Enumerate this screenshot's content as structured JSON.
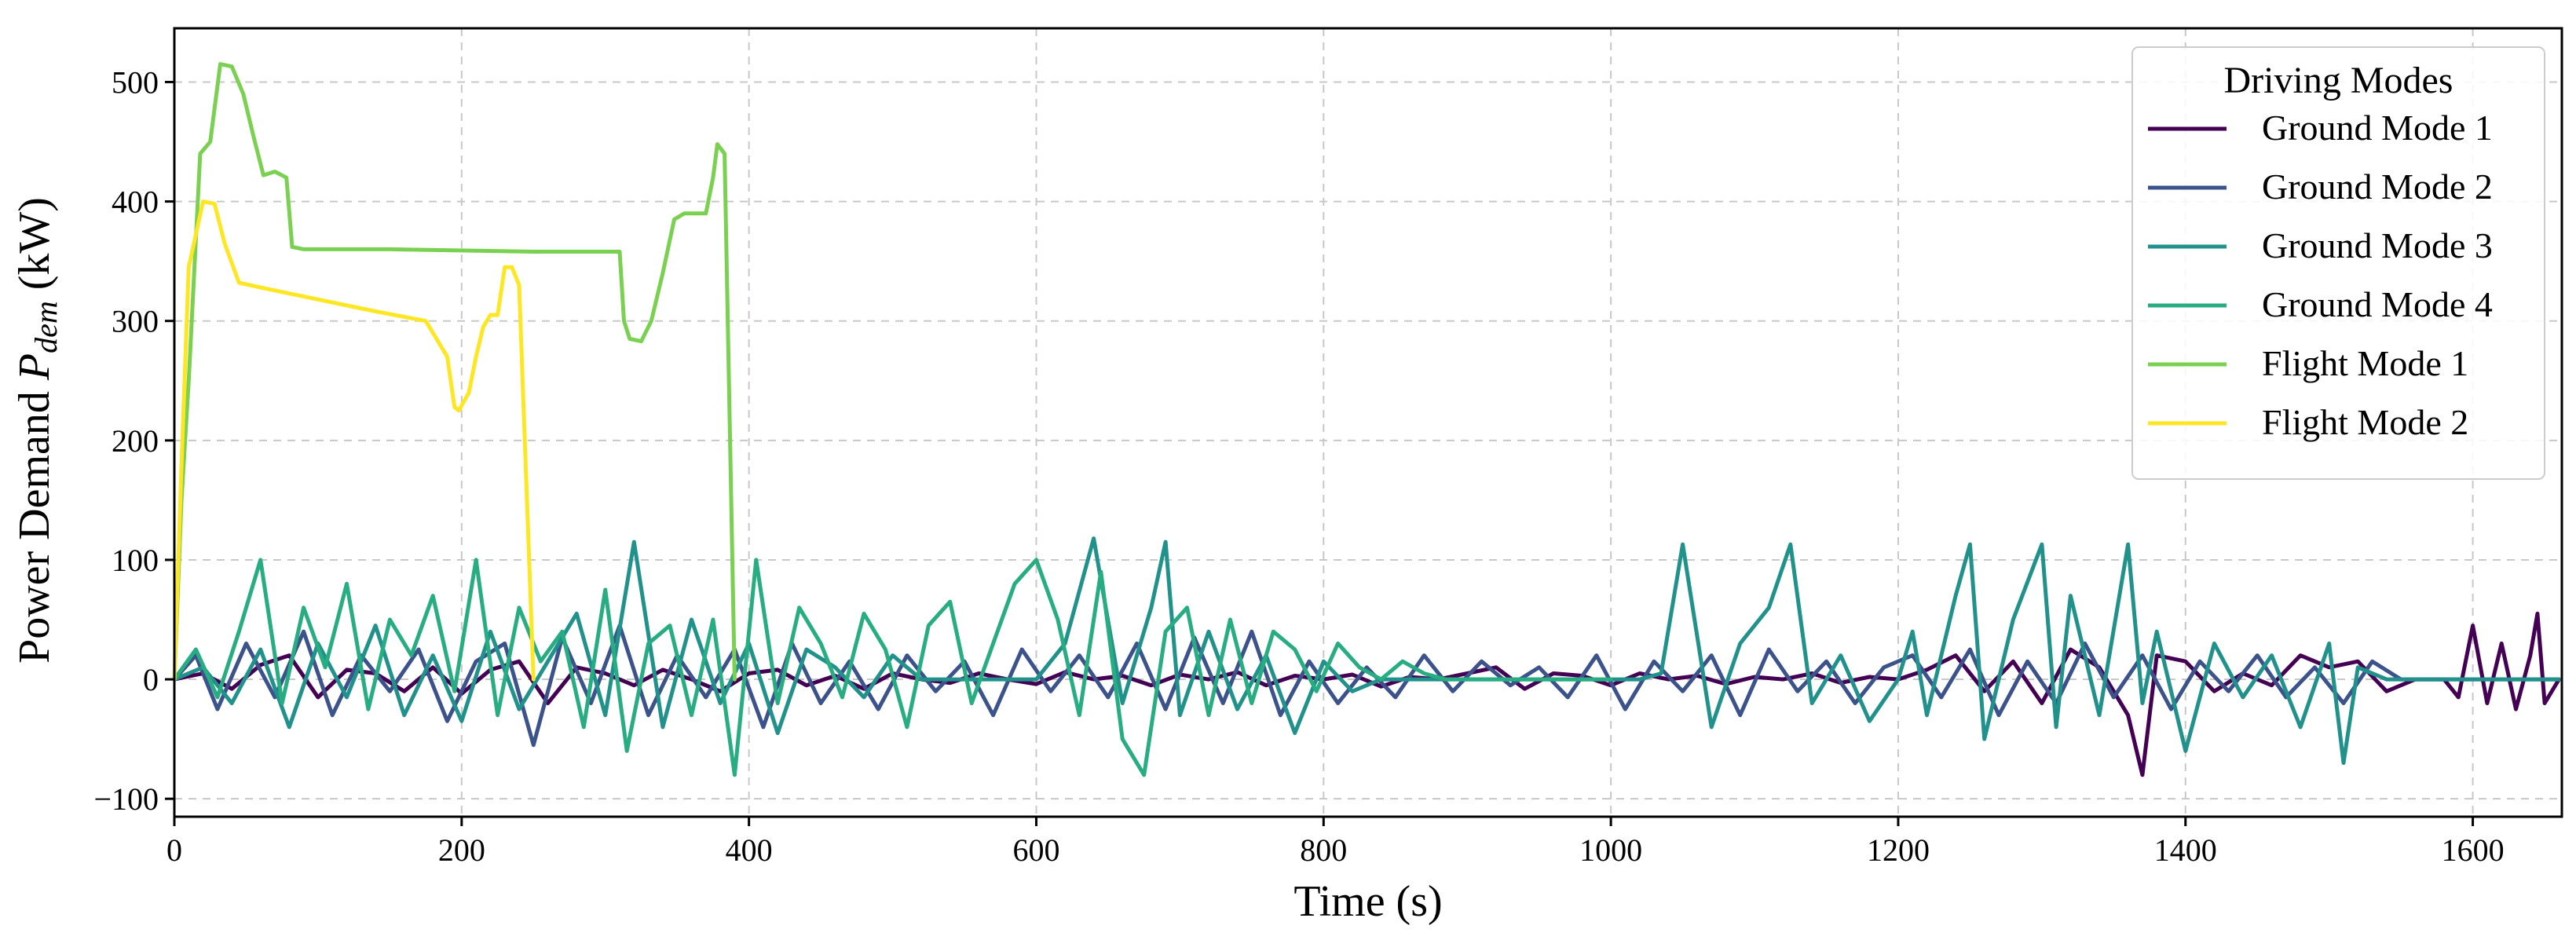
{
  "chart_data": {
    "type": "line",
    "title": "",
    "xlabel": "Time (s)",
    "ylabel_prefix": "Power Demand ",
    "ylabel_symbol": "P",
    "ylabel_subscript": "dem",
    "ylabel_suffix": " (kW)",
    "xlim": [
      0,
      1662
    ],
    "ylim": [
      -115,
      545
    ],
    "x_ticks": [
      0,
      200,
      400,
      600,
      800,
      1000,
      1200,
      1400,
      1600
    ],
    "y_ticks": [
      -100,
      0,
      100,
      200,
      300,
      400,
      500
    ],
    "x_tick_labels": [
      "0",
      "200",
      "400",
      "600",
      "800",
      "1000",
      "1200",
      "1400",
      "1600"
    ],
    "y_tick_labels": [
      "−100",
      "0",
      "100",
      "200",
      "300",
      "400",
      "500"
    ],
    "grid": true,
    "legend": {
      "title": "Driving Modes",
      "position": "top-right"
    },
    "series": [
      {
        "name": "Ground Mode 1",
        "color": "#440154",
        "x": [
          0,
          20,
          40,
          60,
          80,
          100,
          120,
          140,
          160,
          180,
          200,
          220,
          240,
          260,
          280,
          300,
          320,
          340,
          360,
          380,
          400,
          420,
          440,
          460,
          480,
          500,
          520,
          540,
          560,
          580,
          600,
          620,
          640,
          660,
          680,
          700,
          720,
          740,
          760,
          780,
          800,
          820,
          840,
          860,
          880,
          900,
          920,
          940,
          960,
          980,
          1000,
          1020,
          1040,
          1060,
          1080,
          1100,
          1120,
          1140,
          1160,
          1180,
          1200,
          1220,
          1240,
          1260,
          1280,
          1300,
          1320,
          1340,
          1360,
          1370,
          1380,
          1400,
          1420,
          1440,
          1460,
          1480,
          1500,
          1520,
          1540,
          1560,
          1580,
          1590,
          1600,
          1610,
          1620,
          1630,
          1640,
          1645,
          1650,
          1660
        ],
        "y": [
          0,
          5,
          -8,
          12,
          20,
          -15,
          8,
          5,
          -10,
          10,
          -12,
          8,
          15,
          -20,
          10,
          5,
          -5,
          8,
          0,
          -10,
          5,
          8,
          -5,
          3,
          -8,
          5,
          0,
          -3,
          5,
          0,
          -4,
          6,
          0,
          3,
          -5,
          4,
          0,
          6,
          -5,
          3,
          0,
          4,
          -6,
          2,
          0,
          5,
          10,
          -8,
          5,
          3,
          -5,
          5,
          0,
          3,
          -4,
          2,
          0,
          5,
          -3,
          2,
          0,
          8,
          20,
          -10,
          15,
          -20,
          25,
          10,
          -30,
          -80,
          20,
          15,
          -10,
          5,
          -5,
          20,
          10,
          15,
          -10,
          0,
          0,
          -15,
          45,
          -20,
          30,
          -25,
          20,
          55,
          -20,
          0
        ]
      },
      {
        "name": "Ground Mode 2",
        "color": "#3b528b",
        "x": [
          0,
          15,
          30,
          50,
          70,
          90,
          110,
          130,
          150,
          170,
          190,
          210,
          230,
          250,
          270,
          290,
          310,
          330,
          350,
          370,
          390,
          410,
          430,
          450,
          470,
          490,
          510,
          530,
          550,
          570,
          590,
          610,
          630,
          650,
          670,
          690,
          710,
          730,
          750,
          770,
          790,
          810,
          830,
          850,
          870,
          890,
          910,
          930,
          950,
          970,
          990,
          1010,
          1030,
          1050,
          1070,
          1090,
          1110,
          1130,
          1150,
          1170,
          1190,
          1210,
          1230,
          1250,
          1270,
          1290,
          1310,
          1330,
          1350,
          1370,
          1390,
          1410,
          1430,
          1450,
          1470,
          1490,
          1510,
          1530,
          1550,
          1570,
          1590,
          1610,
          1630,
          1650,
          1660
        ],
        "y": [
          0,
          20,
          -25,
          30,
          -15,
          40,
          -30,
          20,
          -10,
          25,
          -35,
          15,
          30,
          -55,
          35,
          -20,
          45,
          -30,
          20,
          -15,
          25,
          -40,
          30,
          -20,
          15,
          -25,
          20,
          -10,
          15,
          -30,
          25,
          -10,
          20,
          -15,
          30,
          -25,
          35,
          -20,
          40,
          -30,
          15,
          -20,
          10,
          -15,
          20,
          -10,
          15,
          -5,
          10,
          -15,
          20,
          -25,
          15,
          -10,
          20,
          -30,
          25,
          -10,
          15,
          -20,
          10,
          20,
          -15,
          25,
          -30,
          15,
          -20,
          30,
          -15,
          20,
          -25,
          15,
          -10,
          20,
          -15,
          10,
          -20,
          15,
          0,
          0,
          0,
          0,
          0,
          0,
          0
        ]
      },
      {
        "name": "Ground Mode 3",
        "color": "#21918c",
        "x": [
          0,
          20,
          40,
          60,
          80,
          100,
          120,
          140,
          160,
          180,
          200,
          220,
          240,
          260,
          280,
          300,
          320,
          340,
          360,
          380,
          400,
          420,
          440,
          460,
          480,
          500,
          520,
          540,
          560,
          580,
          600,
          620,
          640,
          660,
          680,
          690,
          700,
          720,
          740,
          760,
          780,
          800,
          820,
          840,
          860,
          880,
          900,
          920,
          940,
          960,
          980,
          1000,
          1020,
          1035,
          1050,
          1070,
          1090,
          1110,
          1125,
          1140,
          1160,
          1180,
          1200,
          1210,
          1220,
          1240,
          1250,
          1260,
          1280,
          1300,
          1310,
          1320,
          1340,
          1360,
          1370,
          1380,
          1400,
          1420,
          1440,
          1460,
          1480,
          1500,
          1510,
          1520,
          1540,
          1560,
          1580,
          1600,
          1620,
          1640,
          1660
        ],
        "y": [
          0,
          10,
          -20,
          25,
          -40,
          30,
          -15,
          45,
          -30,
          20,
          -35,
          40,
          -25,
          15,
          55,
          -30,
          115,
          -40,
          50,
          -20,
          30,
          -45,
          25,
          10,
          -15,
          20,
          0,
          0,
          0,
          0,
          0,
          30,
          118,
          -20,
          60,
          115,
          -30,
          40,
          -25,
          20,
          -45,
          15,
          -10,
          0,
          0,
          0,
          0,
          0,
          0,
          0,
          0,
          0,
          0,
          5,
          113,
          -40,
          30,
          60,
          113,
          -20,
          20,
          -35,
          0,
          40,
          -30,
          70,
          113,
          -50,
          50,
          113,
          -40,
          70,
          -30,
          113,
          -20,
          40,
          -60,
          30,
          -15,
          20,
          -40,
          30,
          -70,
          10,
          0,
          0,
          0,
          0,
          0,
          0,
          0
        ]
      },
      {
        "name": "Ground Mode 4",
        "color": "#27ad81",
        "x": [
          0,
          15,
          30,
          45,
          60,
          75,
          90,
          105,
          120,
          135,
          150,
          165,
          180,
          195,
          210,
          225,
          240,
          255,
          270,
          285,
          300,
          315,
          330,
          345,
          360,
          375,
          390,
          405,
          420,
          435,
          450,
          465,
          480,
          495,
          510,
          525,
          540,
          555,
          570,
          585,
          600,
          615,
          630,
          645,
          660,
          675,
          690,
          705,
          720,
          735,
          750,
          765,
          780,
          795,
          810,
          825,
          840,
          855,
          870,
          885,
          900,
          960,
          1000
        ],
        "y": [
          0,
          25,
          -15,
          40,
          100,
          -20,
          60,
          10,
          80,
          -25,
          50,
          20,
          70,
          -10,
          100,
          -30,
          60,
          15,
          40,
          -40,
          75,
          -60,
          30,
          45,
          -30,
          50,
          -80,
          100,
          -20,
          60,
          30,
          -15,
          55,
          25,
          -40,
          45,
          65,
          -20,
          30,
          80,
          100,
          50,
          -30,
          90,
          -50,
          -80,
          40,
          60,
          -30,
          50,
          -20,
          40,
          25,
          -10,
          30,
          10,
          0,
          15,
          5,
          0,
          0,
          0,
          0
        ]
      },
      {
        "name": "Flight Mode 1",
        "color": "#7ad151",
        "x": [
          0,
          5,
          10,
          18,
          25,
          32,
          40,
          48,
          55,
          62,
          70,
          78,
          82,
          90,
          150,
          250,
          310,
          313,
          317,
          325,
          332,
          340,
          348,
          355,
          360,
          370,
          375,
          378,
          383,
          390
        ],
        "y": [
          0,
          150,
          250,
          440,
          450,
          515,
          513,
          490,
          455,
          422,
          425,
          420,
          362,
          360,
          360,
          358,
          358,
          300,
          285,
          283,
          300,
          340,
          385,
          390,
          390,
          390,
          420,
          448,
          440,
          0
        ]
      },
      {
        "name": "Flight Mode 2",
        "color": "#fde725",
        "x": [
          0,
          5,
          10,
          20,
          28,
          35,
          45,
          60,
          100,
          140,
          175,
          190,
          195,
          198,
          205,
          210,
          215,
          220,
          225,
          230,
          235,
          240,
          250
        ],
        "y": [
          0,
          180,
          345,
          400,
          398,
          365,
          332,
          328,
          318,
          308,
          300,
          270,
          228,
          225,
          240,
          270,
          295,
          305,
          305,
          345,
          345,
          330,
          0
        ]
      }
    ]
  }
}
